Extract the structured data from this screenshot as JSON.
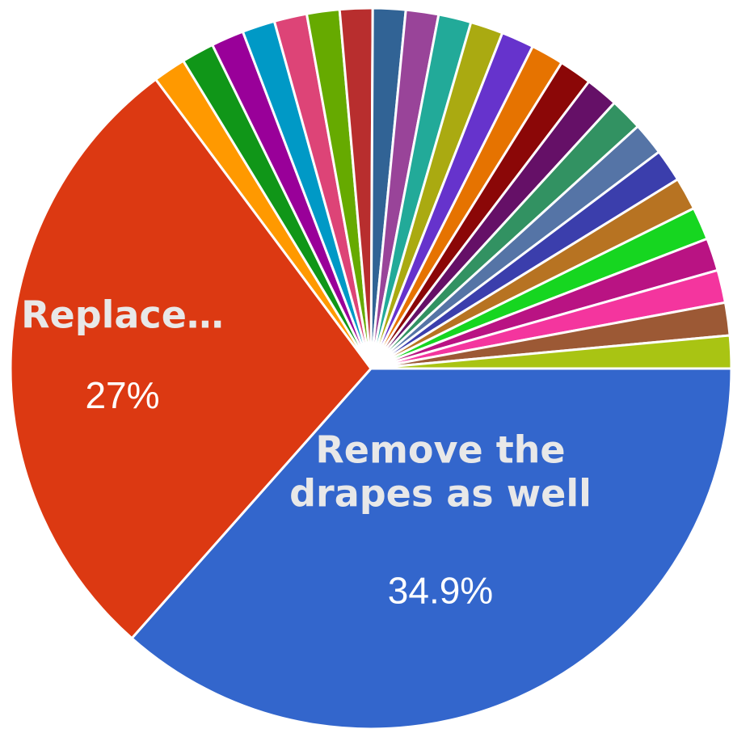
{
  "chart_data": {
    "type": "pie",
    "title": "",
    "start_angle_deg": 90,
    "direction": "clockwise",
    "slices": [
      {
        "value": 34.9,
        "color": "#3366cc",
        "label": "Remove the drapes as well",
        "label_lines": [
          "Remove the",
          "drapes as well"
        ],
        "value_label": "34.9%"
      },
      {
        "value": 27.0,
        "color": "#dc3912",
        "label": "Replace…",
        "label_lines": [
          "Replace…"
        ],
        "value_label": "27%"
      },
      {
        "value": 1.4,
        "color": "#ff9900"
      },
      {
        "value": 1.4,
        "color": "#109618"
      },
      {
        "value": 1.4,
        "color": "#990099"
      },
      {
        "value": 1.4,
        "color": "#0099c6"
      },
      {
        "value": 1.4,
        "color": "#dd4477"
      },
      {
        "value": 1.4,
        "color": "#66aa00"
      },
      {
        "value": 1.4,
        "color": "#b82e2e"
      },
      {
        "value": 1.4,
        "color": "#316395"
      },
      {
        "value": 1.4,
        "color": "#994499"
      },
      {
        "value": 1.4,
        "color": "#22aa99"
      },
      {
        "value": 1.4,
        "color": "#aaaa11"
      },
      {
        "value": 1.4,
        "color": "#6633cc"
      },
      {
        "value": 1.4,
        "color": "#e67300"
      },
      {
        "value": 1.4,
        "color": "#8b0707"
      },
      {
        "value": 1.4,
        "color": "#651067"
      },
      {
        "value": 1.4,
        "color": "#329262"
      },
      {
        "value": 1.4,
        "color": "#5574a6"
      },
      {
        "value": 1.4,
        "color": "#3b3eac"
      },
      {
        "value": 1.4,
        "color": "#b77322"
      },
      {
        "value": 1.4,
        "color": "#16d620"
      },
      {
        "value": 1.4,
        "color": "#b91383"
      },
      {
        "value": 1.4,
        "color": "#f4359e"
      },
      {
        "value": 1.4,
        "color": "#9c5935"
      },
      {
        "value": 1.4,
        "color": "#a9c413"
      }
    ]
  }
}
